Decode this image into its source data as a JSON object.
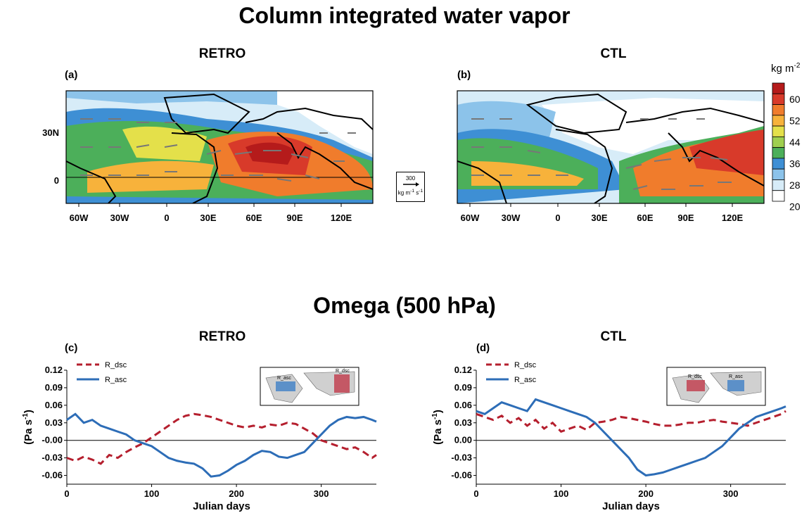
{
  "figure": {
    "title_top": "Column integrated water vapor",
    "title_bottom": "Omega (500 hPa)"
  },
  "maps": [
    {
      "panel": "(a)",
      "title": "RETRO"
    },
    {
      "panel": "(b)",
      "title": "CTL"
    }
  ],
  "map_axes": {
    "lon_ticks": [
      "60W",
      "30W",
      "0",
      "30E",
      "60E",
      "90E",
      "120E"
    ],
    "lat_ticks": [
      "30N",
      "0"
    ]
  },
  "colorbar": {
    "units": "kg m",
    "units_exp": "-2",
    "levels": [
      "60",
      "52",
      "44",
      "36",
      "28",
      "20"
    ],
    "colors": [
      "#b51b1b",
      "#d83a2a",
      "#f07c2c",
      "#f7b23b",
      "#e4e04a",
      "#9fcf4f",
      "#4caf5a",
      "#3e8fd4",
      "#8cc3ea",
      "#d7ecf8",
      "#ffffff"
    ]
  },
  "reference_vector": {
    "magnitude": "300",
    "unit_base": "kg m",
    "unit_exp1": "-1",
    "unit_mid": " s",
    "unit_exp2": "-1"
  },
  "chart_data": [
    {
      "type": "line",
      "panel": "(c)",
      "title": "RETRO",
      "xlabel": "Julian days",
      "ylabel": "(Pa s",
      "ylabel_exp": "-1",
      "ylabel_end": ")",
      "xlim": [
        0,
        365
      ],
      "ylim": [
        -0.075,
        0.12
      ],
      "xticks": [
        0,
        100,
        200,
        300
      ],
      "yticks": [
        "0.12",
        "0.09",
        "0.06",
        "0.03",
        "-0.00",
        "-0.03",
        "-0.06"
      ],
      "series": [
        {
          "name": "R_dsc",
          "style": "dashed",
          "color": "#b51f2e",
          "x": [
            0,
            10,
            20,
            30,
            40,
            50,
            60,
            70,
            80,
            90,
            100,
            110,
            120,
            130,
            140,
            150,
            160,
            170,
            180,
            190,
            200,
            210,
            220,
            230,
            240,
            250,
            260,
            270,
            280,
            290,
            300,
            310,
            320,
            330,
            340,
            350,
            360,
            365
          ],
          "y": [
            -0.03,
            -0.035,
            -0.028,
            -0.033,
            -0.04,
            -0.025,
            -0.03,
            -0.02,
            -0.012,
            -0.005,
            0.005,
            0.015,
            0.025,
            0.035,
            0.042,
            0.045,
            0.043,
            0.04,
            0.035,
            0.03,
            0.025,
            0.022,
            0.025,
            0.022,
            0.027,
            0.025,
            0.03,
            0.028,
            0.02,
            0.012,
            0.0,
            -0.005,
            -0.01,
            -0.015,
            -0.012,
            -0.02,
            -0.03,
            -0.025
          ]
        },
        {
          "name": "R_asc",
          "style": "solid",
          "color": "#2d6db7",
          "x": [
            0,
            10,
            20,
            30,
            40,
            50,
            60,
            70,
            80,
            90,
            100,
            110,
            120,
            130,
            140,
            150,
            160,
            170,
            180,
            190,
            200,
            210,
            220,
            230,
            240,
            250,
            260,
            270,
            280,
            290,
            300,
            310,
            320,
            330,
            340,
            350,
            360,
            365
          ],
          "y": [
            0.035,
            0.045,
            0.03,
            0.035,
            0.025,
            0.02,
            0.015,
            0.01,
            0.0,
            -0.005,
            -0.01,
            -0.02,
            -0.03,
            -0.035,
            -0.038,
            -0.04,
            -0.048,
            -0.062,
            -0.06,
            -0.052,
            -0.042,
            -0.035,
            -0.025,
            -0.018,
            -0.02,
            -0.028,
            -0.03,
            -0.025,
            -0.02,
            -0.005,
            0.01,
            0.025,
            0.035,
            0.04,
            0.038,
            0.04,
            0.035,
            0.032
          ]
        }
      ],
      "inset": {
        "labels": [
          "R_asc",
          "R_dsc"
        ]
      }
    },
    {
      "type": "line",
      "panel": "(d)",
      "title": "CTL",
      "xlabel": "Julian days",
      "ylabel": "(Pa s",
      "ylabel_exp": "-1",
      "ylabel_end": ")",
      "xlim": [
        0,
        365
      ],
      "ylim": [
        -0.075,
        0.12
      ],
      "xticks": [
        0,
        100,
        200,
        300
      ],
      "yticks": [
        "0.12",
        "0.09",
        "0.06",
        "0.03",
        "0.00",
        "-0.03",
        "-0.06"
      ],
      "series": [
        {
          "name": "R_dsc",
          "style": "dashed",
          "color": "#b51f2e",
          "x": [
            0,
            10,
            20,
            30,
            40,
            50,
            60,
            70,
            80,
            90,
            100,
            110,
            120,
            130,
            140,
            150,
            160,
            170,
            180,
            190,
            200,
            210,
            220,
            230,
            240,
            250,
            260,
            270,
            280,
            290,
            300,
            310,
            320,
            330,
            340,
            350,
            360,
            365
          ],
          "y": [
            0.045,
            0.04,
            0.035,
            0.042,
            0.03,
            0.038,
            0.025,
            0.035,
            0.02,
            0.03,
            0.015,
            0.02,
            0.025,
            0.018,
            0.03,
            0.032,
            0.035,
            0.04,
            0.038,
            0.035,
            0.032,
            0.028,
            0.025,
            0.025,
            0.027,
            0.03,
            0.03,
            0.033,
            0.035,
            0.032,
            0.03,
            0.028,
            0.025,
            0.03,
            0.035,
            0.04,
            0.045,
            0.05
          ]
        },
        {
          "name": "R_asc",
          "style": "solid",
          "color": "#2d6db7",
          "x": [
            0,
            10,
            20,
            30,
            40,
            50,
            60,
            70,
            80,
            90,
            100,
            110,
            120,
            130,
            140,
            150,
            160,
            170,
            180,
            190,
            200,
            210,
            220,
            230,
            240,
            250,
            260,
            270,
            280,
            290,
            300,
            310,
            320,
            330,
            340,
            350,
            360,
            365
          ],
          "y": [
            0.05,
            0.045,
            0.055,
            0.065,
            0.06,
            0.055,
            0.05,
            0.07,
            0.065,
            0.06,
            0.055,
            0.05,
            0.045,
            0.04,
            0.03,
            0.015,
            0.0,
            -0.015,
            -0.03,
            -0.05,
            -0.06,
            -0.058,
            -0.055,
            -0.05,
            -0.045,
            -0.04,
            -0.035,
            -0.03,
            -0.02,
            -0.01,
            0.005,
            0.02,
            0.03,
            0.04,
            0.045,
            0.05,
            0.055,
            0.058
          ]
        }
      ],
      "inset": {
        "labels": [
          "R_dsc",
          "R_asc"
        ]
      }
    }
  ]
}
